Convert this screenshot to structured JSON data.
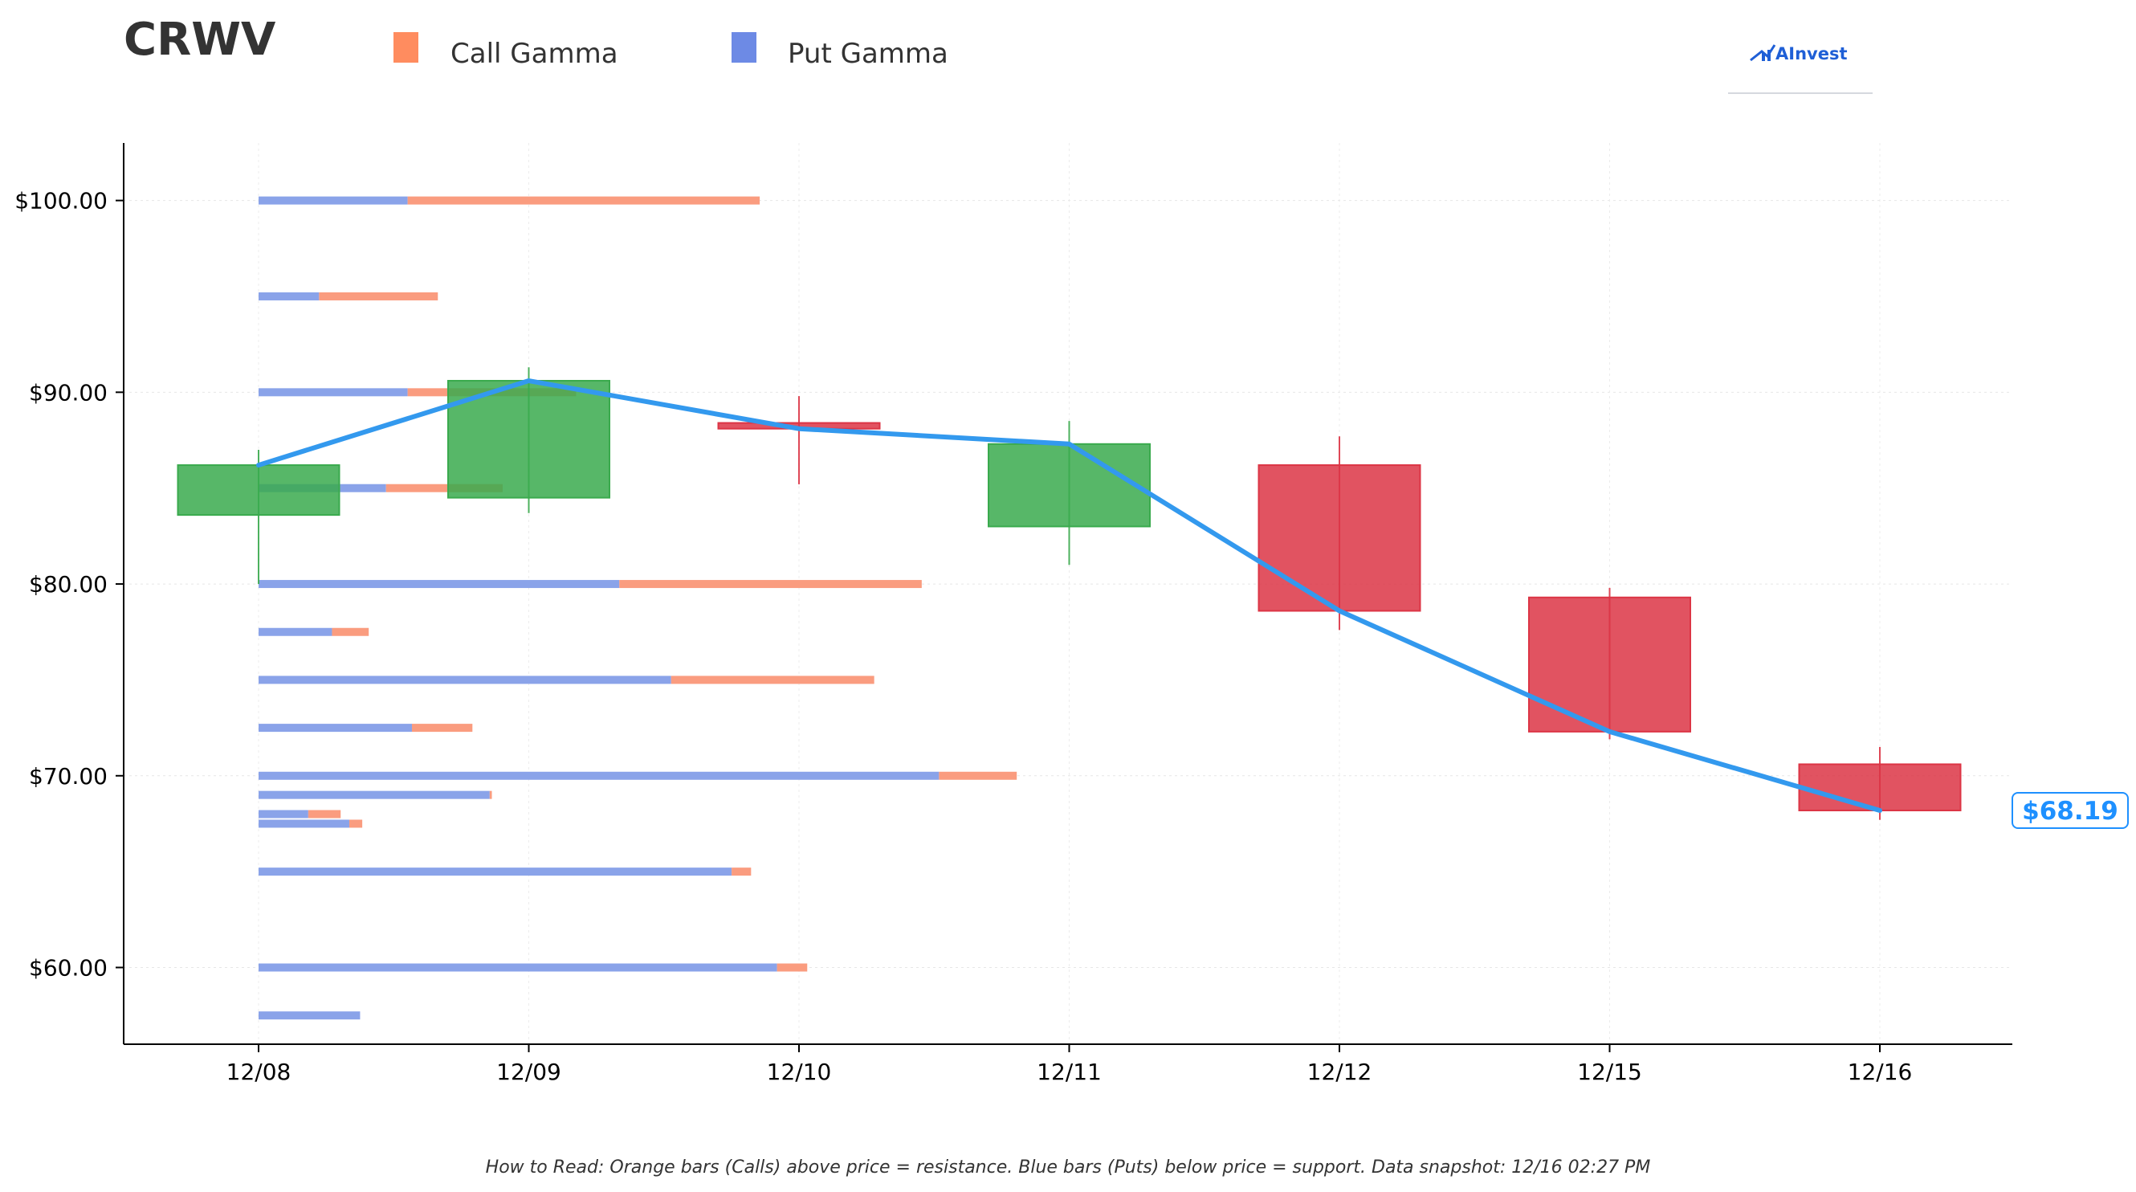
{
  "title": "CRWV",
  "legend": [
    {
      "label": "Call Gamma",
      "color": "#ff8c5f"
    },
    {
      "label": "Put Gamma",
      "color": "#6d8ae5"
    }
  ],
  "brand": {
    "name": "AInvest",
    "icon": "ainvest-logo-icon",
    "color": "#1f5fd6"
  },
  "footnote": "How to Read: Orange bars (Calls) above price = resistance. Blue bars (Puts) below price = support. Data snapshot: 12/16 02:27 PM",
  "current_price_label": "$68.19",
  "colors": {
    "up": "#3aaa4d",
    "down": "#dc3545",
    "line": "#3399ee",
    "call": "#fa9c7f",
    "put": "#8aa3e9",
    "price_label": "#1e90ff"
  },
  "chart_data": {
    "type": "candlestick",
    "title": "CRWV",
    "categories": [
      "12/08",
      "12/09",
      "12/10",
      "12/11",
      "12/12",
      "12/15",
      "12/16"
    ],
    "ylim": [
      56,
      103
    ],
    "yticks": [
      60,
      70,
      80,
      90,
      100
    ],
    "ytick_labels": [
      "$60.00",
      "$70.00",
      "$80.00",
      "$90.00",
      "$100.00"
    ],
    "grid": true,
    "candles": [
      {
        "date": "12/08",
        "open": 83.6,
        "high": 87.0,
        "low": 80.0,
        "close": 86.2
      },
      {
        "date": "12/09",
        "open": 84.5,
        "high": 91.3,
        "low": 83.7,
        "close": 90.6
      },
      {
        "date": "12/10",
        "open": 88.4,
        "high": 89.8,
        "low": 85.2,
        "close": 88.1
      },
      {
        "date": "12/11",
        "open": 83.0,
        "high": 88.5,
        "low": 81.0,
        "close": 87.3
      },
      {
        "date": "12/12",
        "open": 86.2,
        "high": 87.7,
        "low": 77.6,
        "close": 78.6
      },
      {
        "date": "12/15",
        "open": 79.3,
        "high": 79.8,
        "low": 71.9,
        "close": 72.3
      },
      {
        "date": "12/16",
        "open": 70.6,
        "high": 71.5,
        "low": 67.7,
        "close": 68.19
      }
    ],
    "close_line": [
      86.2,
      90.6,
      88.1,
      87.3,
      78.6,
      72.3,
      68.19
    ],
    "gamma_bars": [
      {
        "strike": 100.0,
        "put": 0.69,
        "call": 1.63
      },
      {
        "strike": 95.0,
        "put": 0.28,
        "call": 0.55
      },
      {
        "strike": 90.0,
        "put": 0.69,
        "call": 0.78
      },
      {
        "strike": 85.0,
        "put": 0.59,
        "call": 0.54
      },
      {
        "strike": 80.0,
        "put": 1.67,
        "call": 1.4
      },
      {
        "strike": 77.5,
        "put": 0.34,
        "call": 0.17
      },
      {
        "strike": 75.0,
        "put": 1.91,
        "call": 0.94
      },
      {
        "strike": 72.5,
        "put": 0.71,
        "call": 0.28
      },
      {
        "strike": 70.0,
        "put": 3.15,
        "call": 0.36
      },
      {
        "strike": 69.0,
        "put": 1.07,
        "call": 0.01
      },
      {
        "strike": 68.0,
        "put": 0.23,
        "call": 0.15
      },
      {
        "strike": 67.5,
        "put": 0.42,
        "call": 0.06
      },
      {
        "strike": 65.0,
        "put": 2.19,
        "call": 0.09
      },
      {
        "strike": 60.0,
        "put": 2.4,
        "call": 0.14
      },
      {
        "strike": 57.5,
        "put": 0.47,
        "call": 0.0
      }
    ],
    "current_price": 68.19
  }
}
